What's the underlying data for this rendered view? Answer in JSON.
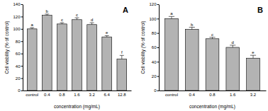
{
  "chart_data": [
    {
      "type": "bar",
      "title": "A",
      "categories": [
        "control",
        "0.4",
        "0.8",
        "1.6",
        "3.2",
        "6.4",
        "12.8"
      ],
      "values": [
        100,
        122,
        108,
        115,
        107,
        87,
        51
      ],
      "errors": [
        2,
        2,
        2,
        3,
        3,
        2,
        6
      ],
      "annotations": [
        "a",
        "b",
        "c",
        "c",
        "d",
        "e",
        "f"
      ],
      "color": "#b3b3b3",
      "x_label": "concentration (mg/mL)",
      "y_label": "Cell viability (% of control)",
      "ylim": [
        0,
        140
      ],
      "yticks": [
        0,
        20,
        40,
        60,
        80,
        100,
        120,
        140
      ],
      "grid": false
    },
    {
      "type": "bar",
      "title": "B",
      "categories": [
        "control",
        "0.4",
        "0.8",
        "1.6",
        "3.2"
      ],
      "values": [
        100,
        85,
        72,
        60,
        45
      ],
      "errors": [
        3,
        3,
        2,
        3,
        4
      ],
      "annotations": [
        "a",
        "b",
        "c",
        "d",
        "e"
      ],
      "color": "#b3b3b3",
      "x_label": "concentration (mg/mL)",
      "y_label": "Cell viability (% of control)",
      "ylim": [
        0,
        120
      ],
      "yticks": [
        0,
        20,
        40,
        60,
        80,
        100,
        120
      ],
      "grid": false
    }
  ]
}
